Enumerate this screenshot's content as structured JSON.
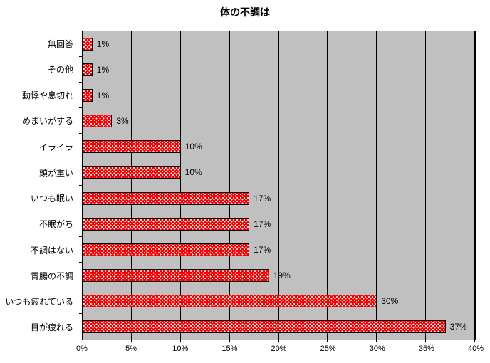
{
  "title": "体の不調は",
  "colors": {
    "bar_fill": "#f00000",
    "bar_pattern_dot": "#ffffff",
    "bar_border": "#000000",
    "plot_bg": "#c0c0c0",
    "chart_bg": "#ffffff",
    "gridline": "#000000",
    "text": "#000000"
  },
  "chart_data": {
    "type": "bar",
    "orientation": "horizontal",
    "title": "体の不調は",
    "categories": [
      "無回答",
      "その他",
      "動悸や息切れ",
      "めまいがする",
      "イライラ",
      "頭が重い",
      "いつも眠い",
      "不眠がち",
      "不調はない",
      "胃腸の不調",
      "いつも疲れている",
      "目が疲れる"
    ],
    "values": [
      1,
      1,
      1,
      3,
      10,
      10,
      17,
      17,
      17,
      19,
      30,
      37
    ],
    "data_labels": [
      "1%",
      "1%",
      "1%",
      "3%",
      "10%",
      "10%",
      "17%",
      "17%",
      "17%",
      "19%",
      "30%",
      "37%"
    ],
    "x_ticks": [
      "0%",
      "5%",
      "10%",
      "15%",
      "20%",
      "25%",
      "30%",
      "35%",
      "40%"
    ],
    "xlim": [
      0,
      40
    ],
    "x_tick_step": 5,
    "grid": true,
    "legend": false,
    "data_label_position": "outside-end"
  }
}
